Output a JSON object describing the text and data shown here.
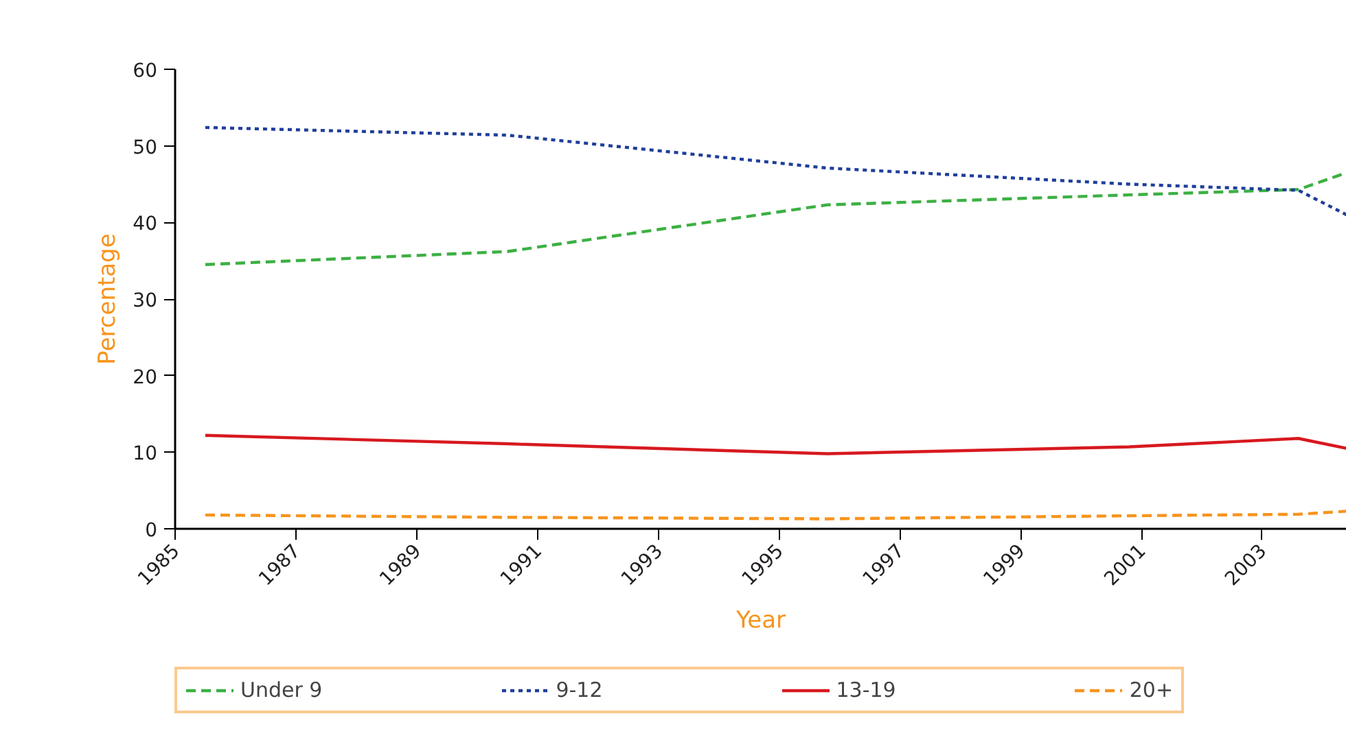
{
  "chart_data": {
    "type": "line",
    "xlabel": "Year",
    "ylabel": "Percentage",
    "x": [
      1985.5,
      1990.5,
      1995.8,
      2000.8,
      2003.6,
      2004.4
    ],
    "series": [
      {
        "name": "Under 9",
        "color": "#3cb043",
        "line_style": "dashed",
        "values": [
          34.5,
          36.2,
          42.3,
          43.6,
          44.3,
          46.5
        ]
      },
      {
        "name": "9-12",
        "color": "#1f3e9a",
        "line_style": "dotted",
        "values": [
          52.4,
          51.4,
          47.1,
          45,
          44.2,
          41
        ]
      },
      {
        "name": "13-19",
        "color": "#d7191f",
        "line_style": "solid",
        "values": [
          12.2,
          11.1,
          9.8,
          10.7,
          11.8,
          10.5
        ]
      },
      {
        "name": "20+",
        "color": "#f7941d",
        "line_style": "dashed",
        "values": [
          1.8,
          1.5,
          1.3,
          1.7,
          1.9,
          2.3
        ]
      }
    ],
    "xlim": [
      1985,
      2004.4
    ],
    "xticks": [
      1985,
      1987,
      1989,
      1991,
      1993,
      1995,
      1997,
      1999,
      2001,
      2003
    ],
    "ylim": [
      0,
      60
    ],
    "yticks": [
      0,
      10,
      20,
      30,
      40,
      50,
      60
    ],
    "grid": false,
    "legend": "bottom",
    "marker": "none"
  }
}
